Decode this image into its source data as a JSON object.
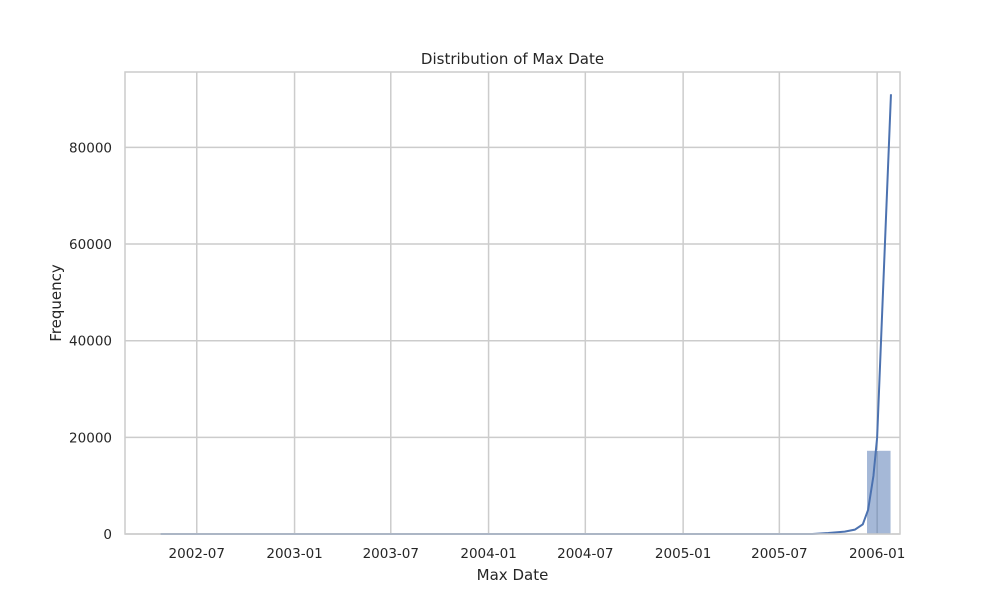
{
  "chart_data": {
    "type": "histogram",
    "title": "Distribution of Max Date",
    "xlabel": "Max Date",
    "ylabel": "Frequency",
    "x_type": "date",
    "xlim": [
      "2002-02-16",
      "2006-02-13"
    ],
    "ylim": [
      0,
      95600
    ],
    "x_tick_labels": [
      "2002-07",
      "2003-01",
      "2003-07",
      "2004-01",
      "2004-07",
      "2005-01",
      "2005-07",
      "2006-01"
    ],
    "y_tick_labels": [
      "0",
      "20000",
      "40000",
      "60000",
      "80000"
    ],
    "grid": true,
    "bin_start": "2002-04-24",
    "bin_end": "2006-01-27",
    "bins": 30,
    "values": [
      0,
      0,
      0,
      0,
      0,
      0,
      0,
      0,
      0,
      0,
      0,
      0,
      0,
      0,
      0,
      0,
      0,
      0,
      0,
      0,
      0,
      0,
      0,
      0,
      0,
      0,
      0,
      0,
      60,
      17300
    ],
    "series": [
      {
        "name": "",
        "type": "bar",
        "color": "#4c72b0",
        "opacity": 0.5
      },
      {
        "name": "",
        "type": "kde",
        "color": "#4c72b0",
        "points": [
          {
            "x": "2002-04-24",
            "y": 0
          },
          {
            "x": "2005-09-01",
            "y": 0
          },
          {
            "x": "2005-10-01",
            "y": 200
          },
          {
            "x": "2005-11-01",
            "y": 500
          },
          {
            "x": "2005-11-20",
            "y": 900
          },
          {
            "x": "2005-12-05",
            "y": 2000
          },
          {
            "x": "2005-12-15",
            "y": 5000
          },
          {
            "x": "2005-12-25",
            "y": 12000
          },
          {
            "x": "2006-01-01",
            "y": 20000
          },
          {
            "x": "2006-01-27",
            "y": 91000
          }
        ]
      }
    ]
  }
}
